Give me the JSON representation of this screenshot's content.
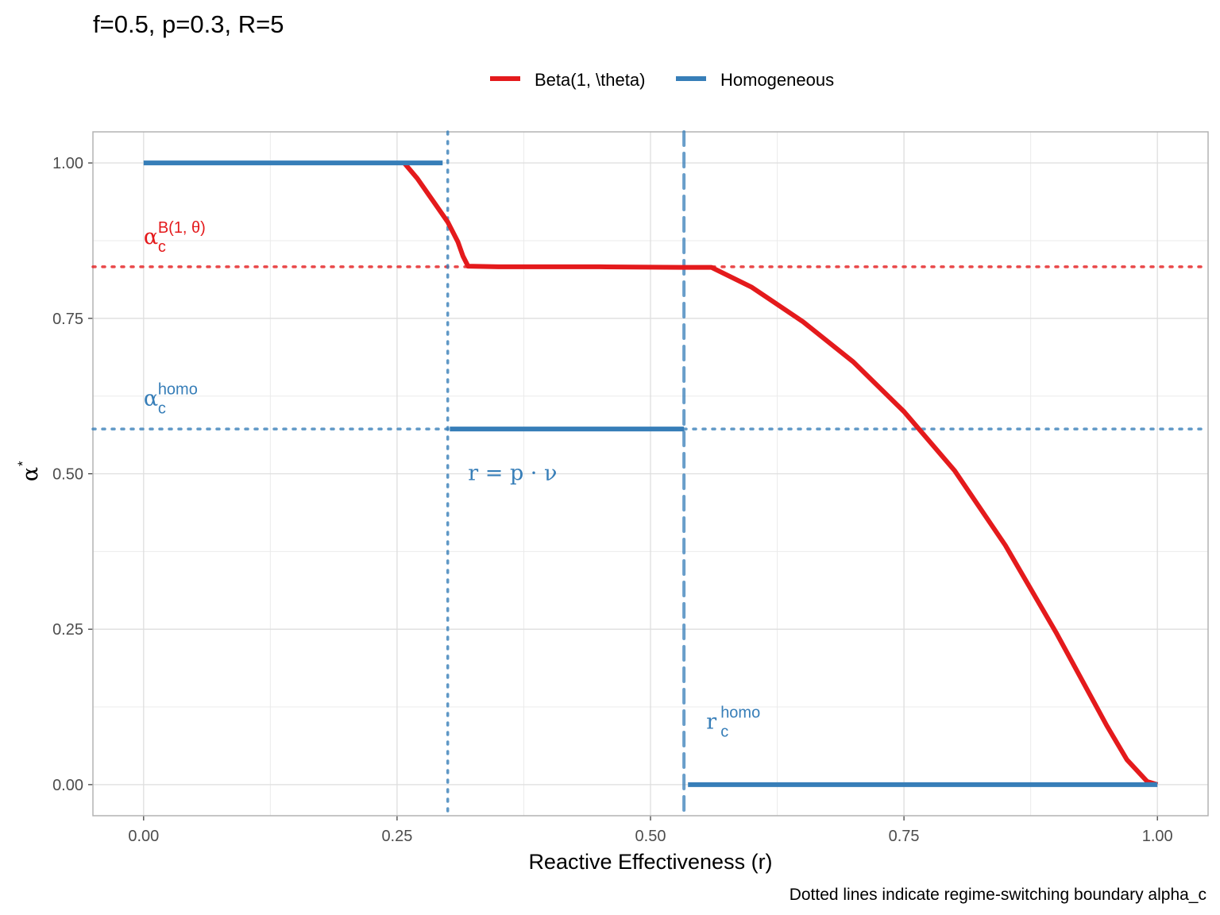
{
  "chart_data": {
    "type": "line",
    "title": "f=0.5, p=0.3, R=5",
    "xlabel": "Reactive Effectiveness (r)",
    "ylabel": "α",
    "ylabel_superscript": "*",
    "caption": "Dotted lines indicate regime-switching boundary alpha_c",
    "xlim": [
      -0.05,
      1.05
    ],
    "ylim": [
      -0.05,
      1.05
    ],
    "x_ticks": [
      0,
      0.25,
      0.5,
      0.75,
      1
    ],
    "x_tick_labels": [
      "0.00",
      "0.25",
      "0.50",
      "0.75",
      "1.00"
    ],
    "y_ticks": [
      0,
      0.25,
      0.5,
      0.75,
      1
    ],
    "y_tick_labels": [
      "0.00",
      "0.25",
      "0.50",
      "0.75",
      "1.00"
    ],
    "grid": true,
    "legend_position": "top",
    "legend": [
      {
        "label": "Beta(1, \\theta)",
        "color": "#e41a1c"
      },
      {
        "label": "Homogeneous",
        "color": "#377eb8"
      }
    ],
    "series": [
      {
        "name": "Beta(1, \\theta)",
        "color": "#e41a1c",
        "segments": [
          [
            [
              0.257,
              1.0
            ],
            [
              0.27,
              0.975
            ],
            [
              0.285,
              0.94
            ],
            [
              0.3,
              0.905
            ],
            [
              0.31,
              0.873
            ],
            [
              0.315,
              0.85
            ],
            [
              0.32,
              0.834
            ],
            [
              0.35,
              0.833
            ],
            [
              0.45,
              0.833
            ],
            [
              0.53,
              0.832
            ],
            [
              0.56,
              0.832
            ],
            [
              0.6,
              0.8
            ],
            [
              0.65,
              0.745
            ],
            [
              0.7,
              0.68
            ],
            [
              0.75,
              0.6
            ],
            [
              0.8,
              0.505
            ],
            [
              0.85,
              0.385
            ],
            [
              0.9,
              0.245
            ],
            [
              0.95,
              0.095
            ],
            [
              0.97,
              0.04
            ],
            [
              0.99,
              0.005
            ],
            [
              1.0,
              0.0
            ]
          ]
        ]
      },
      {
        "name": "Homogeneous",
        "color": "#377eb8",
        "segments": [
          [
            [
              0.0,
              1.0
            ],
            [
              0.295,
              1.0
            ]
          ],
          [
            [
              0.302,
              0.572
            ],
            [
              0.533,
              0.572
            ]
          ],
          [
            [
              0.537,
              0.0
            ],
            [
              1.0,
              0.0
            ]
          ]
        ]
      }
    ],
    "reference_lines": [
      {
        "orientation": "horizontal",
        "value": 0.833,
        "style": "dotted",
        "color": "#e41a1c"
      },
      {
        "orientation": "horizontal",
        "value": 0.572,
        "style": "dotted",
        "color": "#377eb8"
      },
      {
        "orientation": "vertical",
        "value": 0.3,
        "style": "dotted",
        "color": "#377eb8"
      },
      {
        "orientation": "vertical",
        "value": 0.533,
        "style": "dashed",
        "color": "#377eb8"
      }
    ],
    "annotations": [
      {
        "base": "α",
        "sub": "c",
        "sup": "B(1, θ)",
        "x": 0.0,
        "y": 0.87,
        "color": "#e41a1c"
      },
      {
        "base": "α",
        "sub": "c",
        "sup": "homo",
        "x": 0.0,
        "y": 0.61,
        "color": "#377eb8"
      },
      {
        "base": "r = p · ν",
        "sub": "",
        "sup": "",
        "x": 0.32,
        "y": 0.49,
        "color": "#377eb8"
      },
      {
        "base": "r",
        "sub": "c",
        "sup": "homo",
        "x": 0.555,
        "y": 0.09,
        "color": "#377eb8"
      }
    ]
  }
}
